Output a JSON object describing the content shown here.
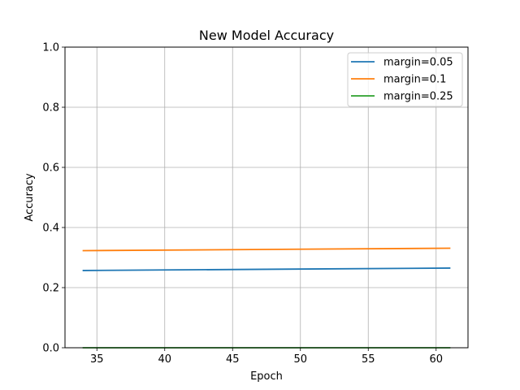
{
  "chart_data": {
    "type": "line",
    "title": "New Model Accuracy",
    "xlabel": "Epoch",
    "ylabel": "Accuracy",
    "xlim": [
      32.65,
      62.35
    ],
    "ylim": [
      0.0,
      1.0
    ],
    "x_ticks": [
      35,
      40,
      45,
      50,
      55,
      60
    ],
    "y_ticks": [
      0.0,
      0.2,
      0.4,
      0.6,
      0.8,
      1.0
    ],
    "x_tick_labels": [
      "35",
      "40",
      "45",
      "50",
      "55",
      "60"
    ],
    "y_tick_labels": [
      "0.0",
      "0.2",
      "0.4",
      "0.6",
      "0.8",
      "1.0"
    ],
    "grid": true,
    "legend_position": "top-right",
    "x": [
      34,
      61
    ],
    "series": [
      {
        "name": "margin=0.05",
        "color": "#1f77b4",
        "values": [
          0.257,
          0.265
        ]
      },
      {
        "name": "margin=0.1",
        "color": "#ff7f0e",
        "values": [
          0.323,
          0.331
        ]
      },
      {
        "name": "margin=0.25",
        "color": "#2ca02c",
        "values": [
          0.0,
          0.0
        ]
      }
    ]
  }
}
